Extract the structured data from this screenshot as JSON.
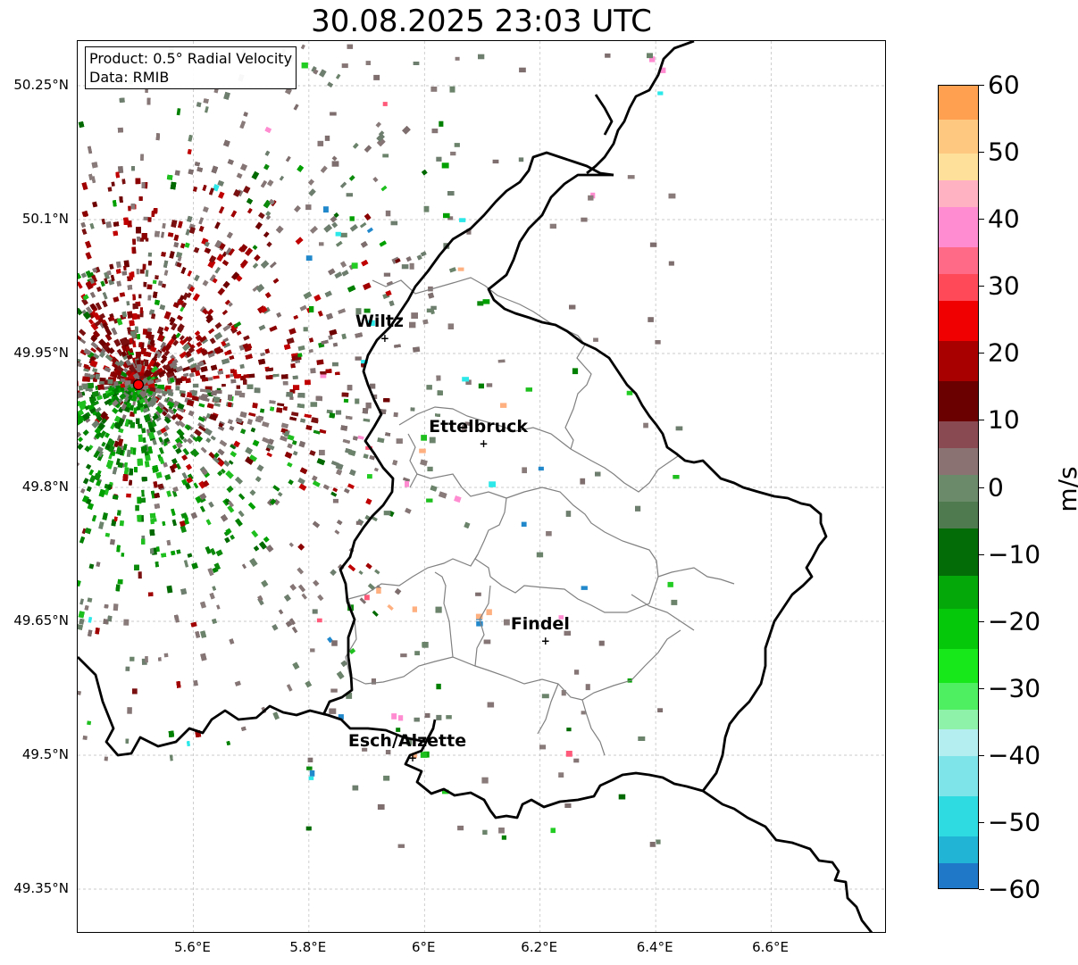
{
  "title": "30.08.2025 23:03 UTC",
  "info_box": {
    "product": "Product: 0.5° Radial Velocity",
    "data": "Data: RMIB"
  },
  "axes": {
    "lat_ticks": [
      "50.25°N",
      "50.1°N",
      "49.95°N",
      "49.8°N",
      "49.65°N",
      "49.5°N",
      "49.35°N"
    ],
    "lon_ticks": [
      "5.6°E",
      "5.8°E",
      "6°E",
      "6.2°E",
      "6.4°E",
      "6.6°E"
    ]
  },
  "cities": [
    {
      "name": "Wiltz",
      "lat": 49.966,
      "lon": 5.933
    },
    {
      "name": "Ettelbruck",
      "lat": 49.848,
      "lon": 6.104
    },
    {
      "name": "Findel",
      "lat": 49.627,
      "lon": 6.211
    },
    {
      "name": "Esch/Alzette",
      "lat": 49.496,
      "lon": 5.981
    }
  ],
  "radar_site": {
    "lat": 49.915,
    "lon": 5.505,
    "color": "#ff0000"
  },
  "colorbar": {
    "unit": "m/s",
    "tick_labels": [
      "60",
      "50",
      "40",
      "30",
      "20",
      "10",
      "0",
      "−10",
      "−20",
      "−30",
      "−40",
      "−50",
      "−60"
    ],
    "range": [
      -60,
      60
    ],
    "stops": [
      {
        "from": -60,
        "to": -56,
        "color": "#1f78c8"
      },
      {
        "from": -56,
        "to": -52,
        "color": "#22b4d4"
      },
      {
        "from": -52,
        "to": -46,
        "color": "#2edbe0"
      },
      {
        "from": -46,
        "to": -40,
        "color": "#7fe3ea"
      },
      {
        "from": -40,
        "to": -36,
        "color": "#b4eef0"
      },
      {
        "from": -36,
        "to": -33,
        "color": "#8ef2a8"
      },
      {
        "from": -33,
        "to": -29,
        "color": "#4ef062"
      },
      {
        "from": -29,
        "to": -24,
        "color": "#16e81a"
      },
      {
        "from": -24,
        "to": -18,
        "color": "#05c80a"
      },
      {
        "from": -18,
        "to": -13,
        "color": "#04a808"
      },
      {
        "from": -13,
        "to": -6,
        "color": "#036c06"
      },
      {
        "from": -6,
        "to": -2,
        "color": "#4f7a50"
      },
      {
        "from": -2,
        "to": 2,
        "color": "#6a8a6a"
      },
      {
        "from": 2,
        "to": 6,
        "color": "#8a7272"
      },
      {
        "from": 6,
        "to": 10,
        "color": "#8a4a52"
      },
      {
        "from": 10,
        "to": 16,
        "color": "#6a0000"
      },
      {
        "from": 16,
        "to": 22,
        "color": "#a80000"
      },
      {
        "from": 22,
        "to": 28,
        "color": "#f00000"
      },
      {
        "from": 28,
        "to": 32,
        "color": "#ff4858"
      },
      {
        "from": 32,
        "to": 36,
        "color": "#ff6a86"
      },
      {
        "from": 36,
        "to": 42,
        "color": "#ff8cd0"
      },
      {
        "from": 42,
        "to": 46,
        "color": "#ffb2c2"
      },
      {
        "from": 46,
        "to": 50,
        "color": "#ffe09a"
      },
      {
        "from": 50,
        "to": 55,
        "color": "#ffc880"
      },
      {
        "from": 55,
        "to": 60,
        "color": "#ffa050"
      }
    ]
  },
  "colors": {
    "border": "#000000",
    "canton": "#808080",
    "grid": "#bbbbbb",
    "receding": "#8b0000",
    "approaching": "#008000",
    "near_zero": "#7e6e6e"
  }
}
